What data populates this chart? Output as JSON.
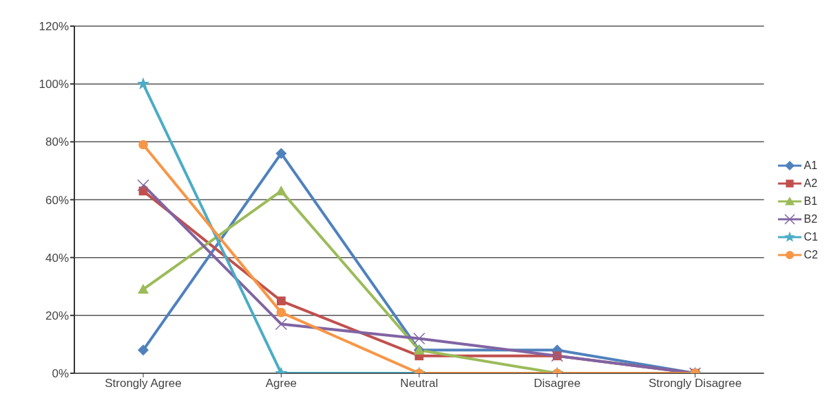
{
  "chart_data": {
    "type": "line",
    "categories": [
      "Strongly Agree",
      "Agree",
      "Neutral",
      "Disagree",
      "Strongly Disagree"
    ],
    "series": [
      {
        "name": "A1",
        "color": "#4f81bd",
        "marker": "diamond",
        "values": [
          8,
          76,
          8,
          8,
          0
        ]
      },
      {
        "name": "A2",
        "color": "#c0504d",
        "marker": "square",
        "values": [
          63,
          25,
          6,
          6,
          0
        ]
      },
      {
        "name": "B1",
        "color": "#9bbb59",
        "marker": "triangle",
        "values": [
          29,
          63,
          8,
          0,
          0
        ]
      },
      {
        "name": "B2",
        "color": "#8064a2",
        "marker": "cross",
        "values": [
          65,
          17,
          12,
          6,
          0
        ]
      },
      {
        "name": "C1",
        "color": "#4bacc6",
        "marker": "star",
        "values": [
          100,
          0,
          0,
          0,
          0
        ]
      },
      {
        "name": "C2",
        "color": "#f79646",
        "marker": "circle",
        "values": [
          79,
          21,
          0,
          0,
          0
        ]
      }
    ],
    "ylim": [
      0,
      120
    ],
    "yticks": [
      {
        "value": 0,
        "label": "0%"
      },
      {
        "value": 20,
        "label": "20%"
      },
      {
        "value": 40,
        "label": "40%"
      },
      {
        "value": 60,
        "label": "60%"
      },
      {
        "value": 80,
        "label": "80%"
      },
      {
        "value": 100,
        "label": "100%"
      },
      {
        "value": 120,
        "label": "120%"
      }
    ],
    "grid": "y",
    "legend": "right"
  }
}
